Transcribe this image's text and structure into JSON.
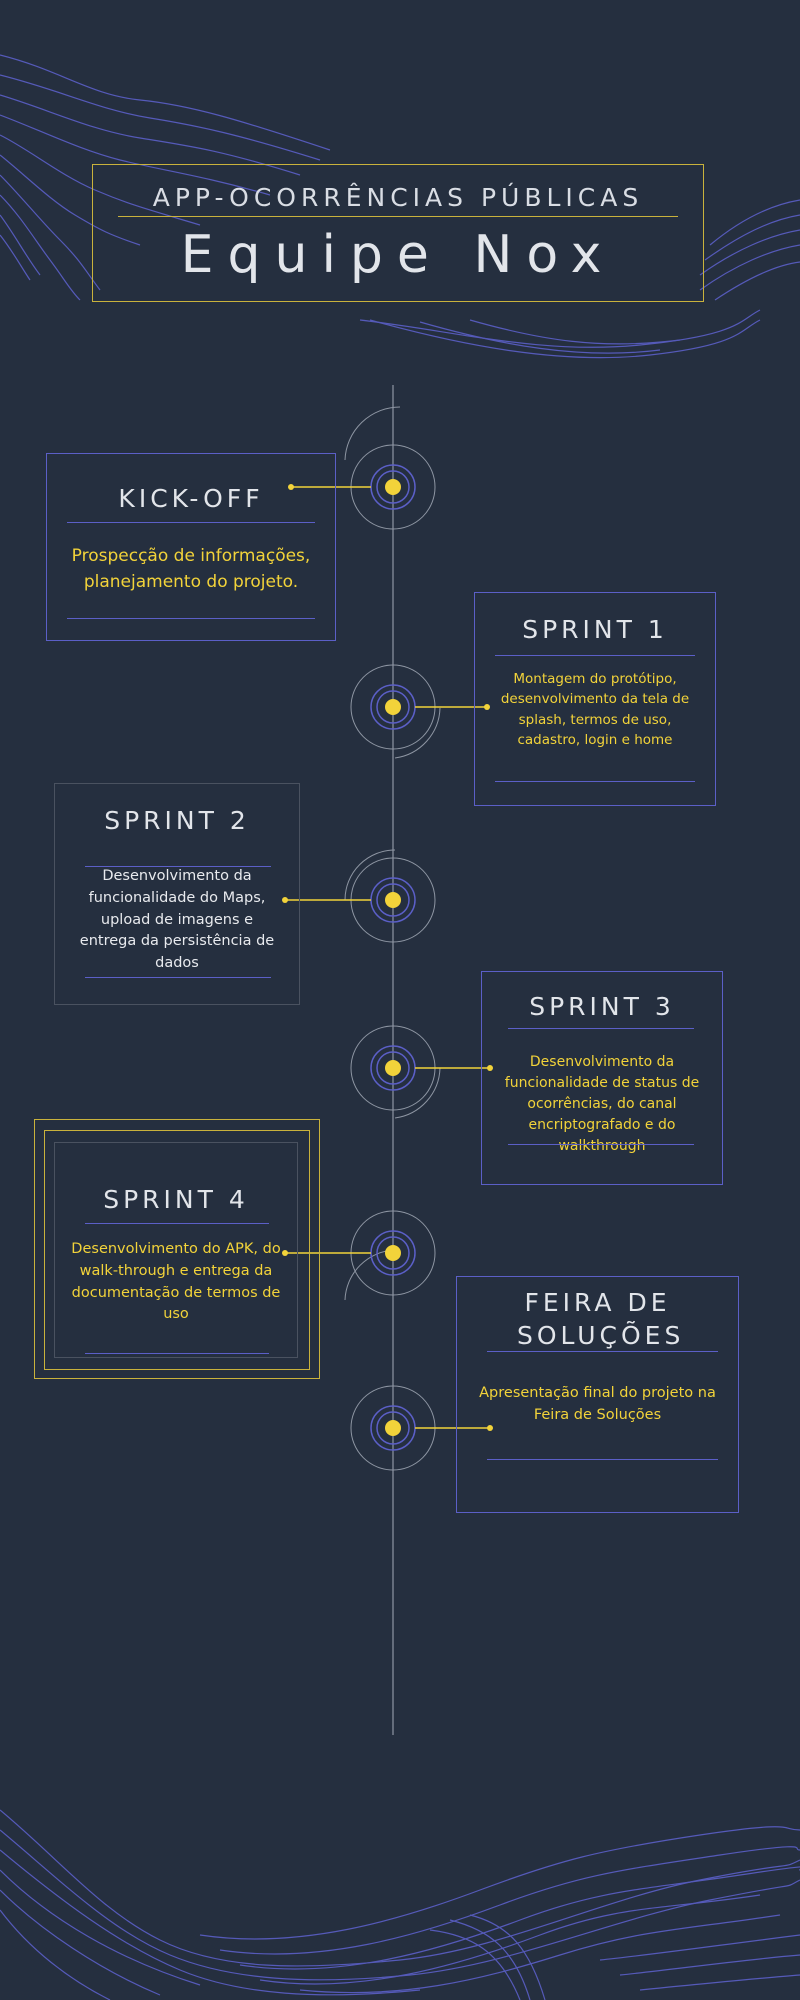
{
  "header": {
    "subtitle": "APP-OCORRÊNCIAS PÚBLICAS",
    "title": "Equipe Nox"
  },
  "colors": {
    "background": "#252f3f",
    "accent_yellow": "#f2d33a",
    "line_blue": "#5b5fc7",
    "frame_gold": "#c9b23c",
    "timeline": "#8e96a3"
  },
  "timeline": [
    {
      "title": "KICK-OFF",
      "text": "Prospecção de informações, planejamento do projeto."
    },
    {
      "title": "SPRINT 1",
      "text": "Montagem do protótipo, desenvolvimento da tela de splash, termos de uso, cadastro, login e home"
    },
    {
      "title": "SPRINT 2",
      "text": "Desenvolvimento da funcionalidade do Maps, upload de imagens e entrega da persistência de dados"
    },
    {
      "title": "SPRINT 3",
      "text": "Desenvolvimento da funcionalidade de status de ocorrências, do canal encriptografado e do walkthrough"
    },
    {
      "title": "SPRINT 4",
      "text": "Desenvolvimento do APK, do walk-through e entrega da documentação de termos de  uso"
    },
    {
      "title": "FEIRA DE SOLUÇÕES",
      "text": "Apresentação final do projeto na Feira de Soluções"
    }
  ]
}
